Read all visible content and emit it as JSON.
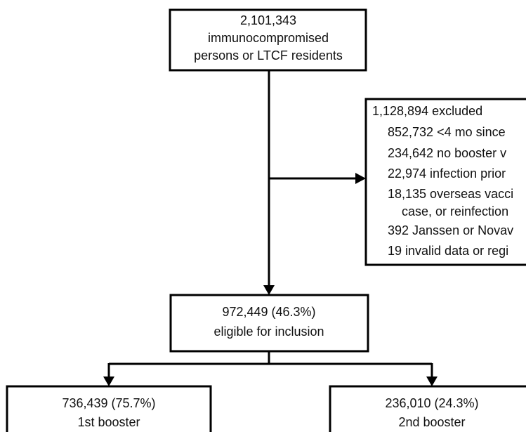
{
  "nodes": [
    {
      "lines": [
        "2,101,343",
        "immunocompromised",
        "persons or LTCF residents"
      ]
    },
    {
      "lines": [
        "1,128,894 excluded",
        "852,732 <4 mo since",
        "234,642 no booster v",
        "22,974 infection prior",
        "18,135 overseas vacci",
        "case, or reinfection",
        "392 Janssen or Novav",
        "19 invalid data or regi"
      ]
    },
    {
      "lines": [
        "972,449 (46.3%)",
        "eligible for inclusion"
      ]
    },
    {
      "lines": [
        "736,439 (75.7%)",
        "1st booster"
      ]
    },
    {
      "lines": [
        "236,010 (24.3%)",
        "2nd booster"
      ]
    }
  ]
}
